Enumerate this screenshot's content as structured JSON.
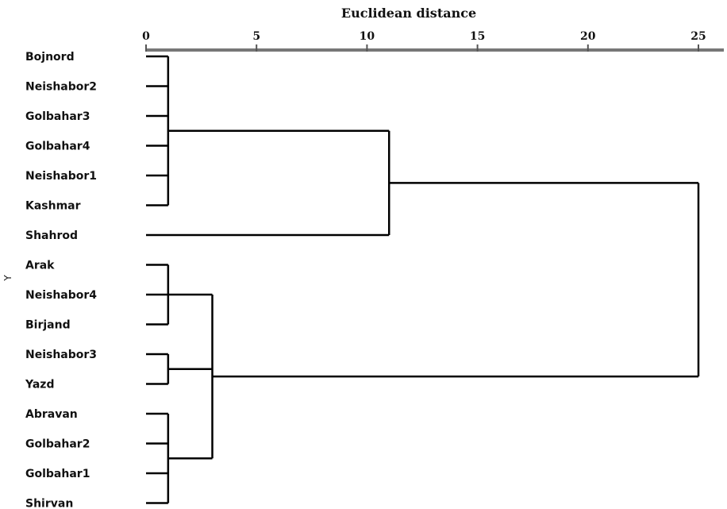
{
  "chart_data": {
    "type": "dendrogram",
    "title": "",
    "xlabel": "Euclidean distance",
    "ylabel": "Y",
    "xlim": [
      0,
      25
    ],
    "xticks": [
      0,
      5,
      10,
      15,
      20,
      25
    ],
    "leaves": [
      "Bojnord",
      "Neishabor2",
      "Golbahar3",
      "Golbahar4",
      "Neishabor1",
      "Kashmar",
      "Shahrod",
      "Arak",
      "Neishabor4",
      "Birjand",
      "Neishabor3",
      "Yazd",
      "Abravan",
      "Golbahar2",
      "Golbahar1",
      "Shirvan"
    ],
    "merges": [
      {
        "members": [
          "Bojnord",
          "Neishabor2",
          "Golbahar3",
          "Golbahar4",
          "Neishabor1",
          "Kashmar"
        ],
        "height": 1
      },
      {
        "members": [
          "Arak",
          "Neishabor4",
          "Birjand"
        ],
        "height": 1
      },
      {
        "members": [
          "Neishabor3",
          "Yazd"
        ],
        "height": 1
      },
      {
        "members": [
          "Abravan",
          "Golbahar2",
          "Golbahar1",
          "Shirvan"
        ],
        "height": 1
      },
      {
        "members": [
          "Bojnord",
          "Neishabor2",
          "Golbahar3",
          "Golbahar4",
          "Neishabor1",
          "Kashmar",
          "Shahrod"
        ],
        "height": 11
      },
      {
        "members": [
          "Arak",
          "Neishabor4",
          "Birjand",
          "Neishabor3",
          "Yazd",
          "Abravan",
          "Golbahar2",
          "Golbahar1",
          "Shirvan"
        ],
        "height": 3
      },
      {
        "members": [
          "all"
        ],
        "height": 25
      }
    ]
  }
}
